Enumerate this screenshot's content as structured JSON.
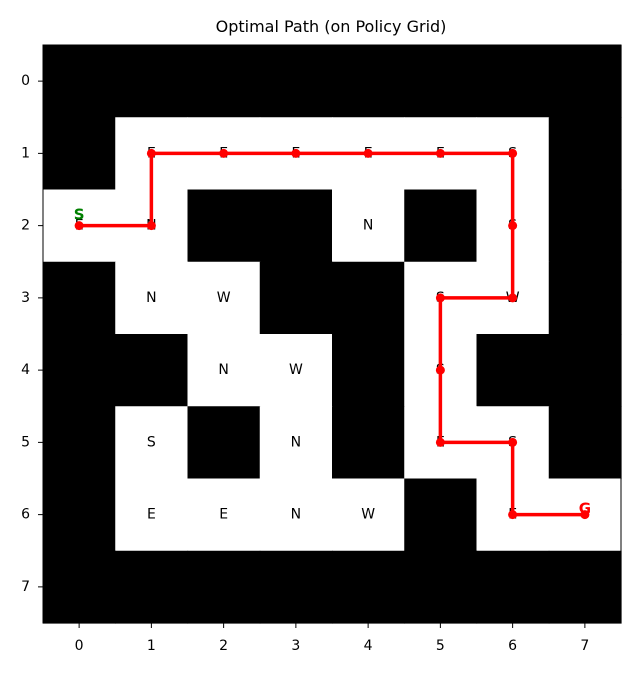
{
  "chart_data": {
    "type": "heatmap",
    "title": "Optimal Path (on Policy Grid)",
    "xlabel": "",
    "ylabel": "",
    "x_ticks": [
      "0",
      "1",
      "2",
      "3",
      "4",
      "5",
      "6",
      "7"
    ],
    "y_ticks": [
      "0",
      "1",
      "2",
      "3",
      "4",
      "5",
      "6",
      "7"
    ],
    "grid": [
      [
        1,
        1,
        1,
        1,
        1,
        1,
        1,
        1
      ],
      [
        1,
        0,
        0,
        0,
        0,
        0,
        0,
        1
      ],
      [
        0,
        0,
        1,
        1,
        0,
        1,
        0,
        1
      ],
      [
        1,
        0,
        0,
        1,
        1,
        0,
        0,
        1
      ],
      [
        1,
        1,
        0,
        0,
        1,
        0,
        1,
        1
      ],
      [
        1,
        0,
        1,
        0,
        1,
        0,
        0,
        1
      ],
      [
        1,
        0,
        0,
        0,
        0,
        1,
        0,
        0
      ],
      [
        1,
        1,
        1,
        1,
        1,
        1,
        1,
        1
      ]
    ],
    "grid_legend": {
      "1": "wall (black)",
      "0": "free (white)"
    },
    "policy": [
      {
        "row": 1,
        "col": 1,
        "action": "E"
      },
      {
        "row": 1,
        "col": 2,
        "action": "E"
      },
      {
        "row": 1,
        "col": 3,
        "action": "E"
      },
      {
        "row": 1,
        "col": 4,
        "action": "E"
      },
      {
        "row": 1,
        "col": 5,
        "action": "E"
      },
      {
        "row": 1,
        "col": 6,
        "action": "S"
      },
      {
        "row": 2,
        "col": 0,
        "action": "E"
      },
      {
        "row": 2,
        "col": 1,
        "action": "N"
      },
      {
        "row": 2,
        "col": 4,
        "action": "N"
      },
      {
        "row": 2,
        "col": 6,
        "action": "S"
      },
      {
        "row": 3,
        "col": 1,
        "action": "N"
      },
      {
        "row": 3,
        "col": 2,
        "action": "W"
      },
      {
        "row": 3,
        "col": 5,
        "action": "S"
      },
      {
        "row": 3,
        "col": 6,
        "action": "W"
      },
      {
        "row": 4,
        "col": 2,
        "action": "N"
      },
      {
        "row": 4,
        "col": 3,
        "action": "W"
      },
      {
        "row": 4,
        "col": 5,
        "action": "S"
      },
      {
        "row": 5,
        "col": 1,
        "action": "S"
      },
      {
        "row": 5,
        "col": 3,
        "action": "N"
      },
      {
        "row": 5,
        "col": 5,
        "action": "E"
      },
      {
        "row": 5,
        "col": 6,
        "action": "S"
      },
      {
        "row": 6,
        "col": 1,
        "action": "E"
      },
      {
        "row": 6,
        "col": 2,
        "action": "E"
      },
      {
        "row": 6,
        "col": 3,
        "action": "N"
      },
      {
        "row": 6,
        "col": 4,
        "action": "W"
      },
      {
        "row": 6,
        "col": 6,
        "action": "E"
      }
    ],
    "path": [
      [
        0,
        2
      ],
      [
        1,
        2
      ],
      [
        1,
        1
      ],
      [
        2,
        1
      ],
      [
        3,
        1
      ],
      [
        4,
        1
      ],
      [
        5,
        1
      ],
      [
        6,
        1
      ],
      [
        6,
        2
      ],
      [
        6,
        3
      ],
      [
        5,
        3
      ],
      [
        5,
        4
      ],
      [
        5,
        5
      ],
      [
        6,
        5
      ],
      [
        6,
        6
      ],
      [
        7,
        6
      ]
    ],
    "start": {
      "x": 0,
      "y": 2,
      "label": "S"
    },
    "goal": {
      "x": 7,
      "y": 6,
      "label": "G"
    },
    "colors": {
      "wall": "#000000",
      "free": "#ffffff",
      "path": "#ff0000",
      "start": "#008000",
      "goal": "#ff0000"
    }
  }
}
